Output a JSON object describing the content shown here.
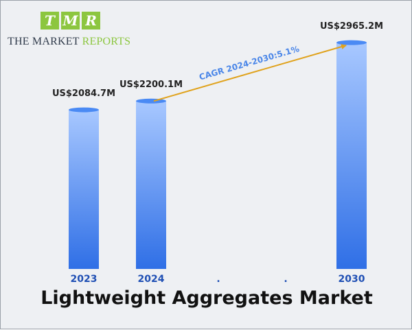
{
  "logo": {
    "tiles": [
      "T",
      "M",
      "R"
    ],
    "text_main": "THE MARKET ",
    "text_accent": "REPORTS"
  },
  "colors": {
    "background": "#eef0f3",
    "bar_top": "#a8c8ff",
    "bar_bottom": "#2f6fe6",
    "bar_cap": "#4a8af4",
    "cagr_arrow": "#e0a21b",
    "cagr_text": "#4a86e8",
    "axis_labels": "#1f4fb4",
    "logo_green": "#8cc63f"
  },
  "chart_data": {
    "type": "bar",
    "title": "Lightweight Aggregates Market",
    "categories": [
      "2023",
      "2024",
      ".",
      ".",
      "2030"
    ],
    "values": [
      2084.7,
      2200.1,
      null,
      null,
      2965.2
    ],
    "value_labels": [
      "US$2084.7M",
      "US$2200.1M",
      "",
      "",
      "US$2965.2M"
    ],
    "annotation": "CAGR 2024-2030:5.1%",
    "xlabel": "",
    "ylabel": "",
    "ylim": [
      0,
      3200
    ],
    "grid": false,
    "legend": "none"
  }
}
